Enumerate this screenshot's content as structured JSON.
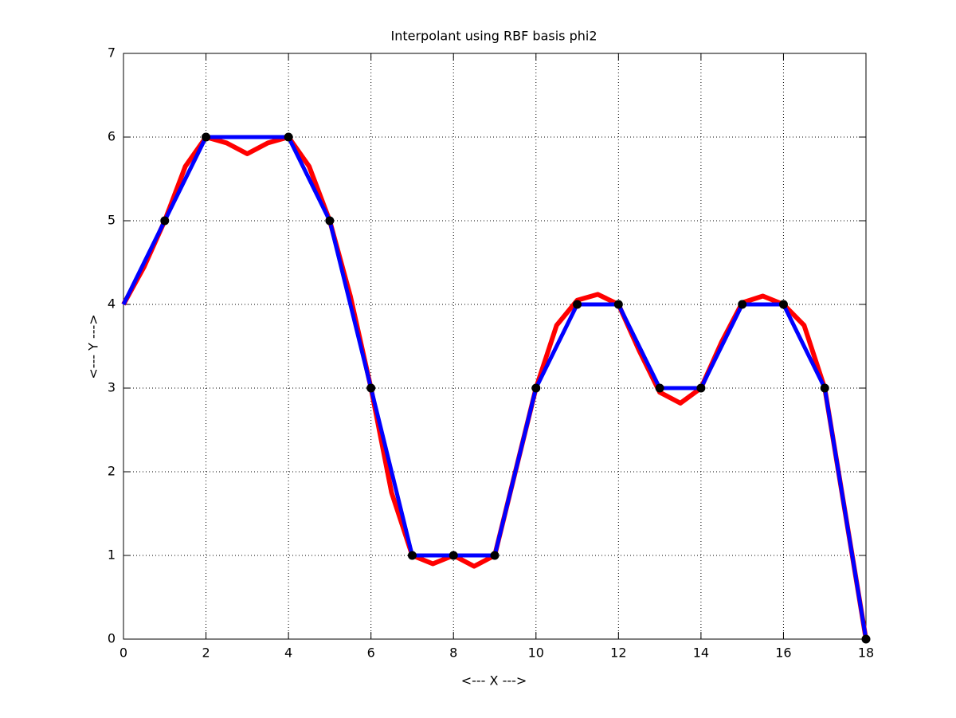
{
  "chart_data": {
    "type": "line",
    "title": "Interpolant using RBF basis phi2",
    "x_label": "<--- X --->",
    "y_label": "<--- Y --->",
    "xlim": [
      0,
      18
    ],
    "ylim": [
      0,
      7
    ],
    "xticks": [
      0,
      2,
      4,
      6,
      8,
      10,
      12,
      14,
      16,
      18
    ],
    "yticks": [
      0,
      1,
      2,
      3,
      4,
      5,
      6,
      7
    ],
    "grid": true,
    "series": [
      {
        "style": "line",
        "color": "#ff0000",
        "width": 6,
        "x": [
          0,
          0.5,
          1,
          1.5,
          2,
          2.5,
          3,
          3.5,
          4,
          4.5,
          5,
          5.5,
          6,
          6.5,
          7,
          7.5,
          8,
          8.5,
          9,
          9.5,
          10,
          10.5,
          11,
          11.5,
          12,
          12.5,
          13,
          13.5,
          14,
          14.5,
          15,
          15.5,
          16,
          16.5,
          17,
          17.5,
          18
        ],
        "values": [
          4,
          4.45,
          5,
          5.65,
          6,
          5.93,
          5.8,
          5.93,
          6,
          5.65,
          5,
          4.1,
          3,
          1.75,
          1,
          0.9,
          1,
          0.87,
          1,
          2.0,
          3,
          3.75,
          4.05,
          4.12,
          4,
          3.45,
          2.95,
          2.82,
          3,
          3.55,
          4.02,
          4.1,
          4,
          3.75,
          3,
          1.5,
          0
        ]
      },
      {
        "style": "line",
        "color": "#0000ff",
        "width": 5,
        "x": [
          0,
          1,
          2,
          3,
          4,
          5,
          6,
          7,
          8,
          9,
          10,
          11,
          12,
          13,
          14,
          15,
          16,
          17,
          18
        ],
        "values": [
          4,
          5,
          6,
          6,
          6,
          5,
          3,
          1,
          1,
          1,
          3,
          4,
          4,
          3,
          3,
          4,
          4,
          3,
          0
        ]
      },
      {
        "style": "markers",
        "color": "#000000",
        "x": [
          1,
          2,
          4,
          5,
          6,
          7,
          8,
          9,
          10,
          11,
          12,
          13,
          14,
          15,
          16,
          17,
          18
        ],
        "values": [
          5,
          6,
          6,
          5,
          3,
          1,
          1,
          1,
          3,
          4,
          4,
          3,
          3,
          4,
          4,
          3,
          0
        ]
      }
    ]
  }
}
